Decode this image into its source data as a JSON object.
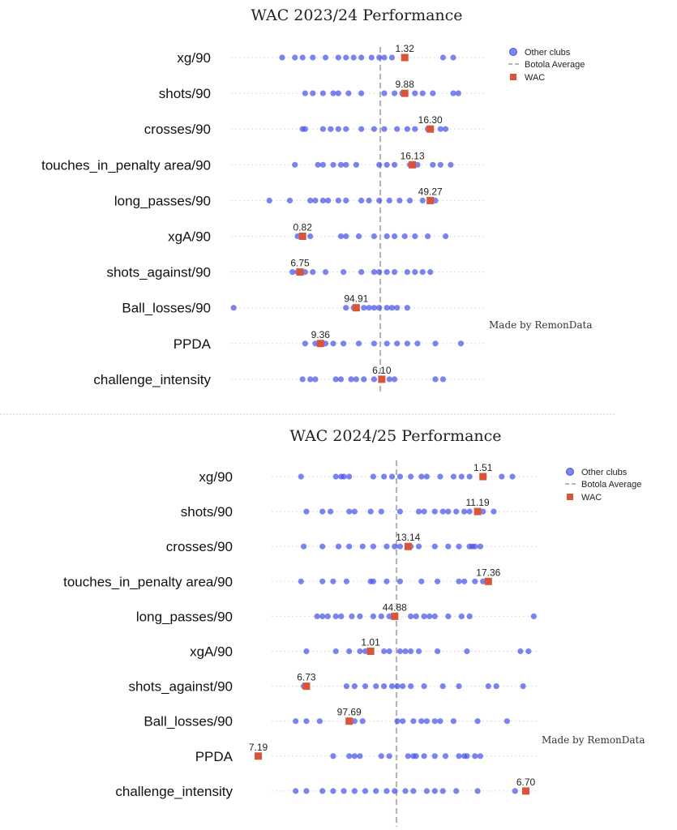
{
  "colors": {
    "other": "#4a55e8",
    "wac": "#d9553a",
    "average": "#b5b5b5",
    "grid": "#dedede",
    "divider": "#c8c8c8"
  },
  "chart_data": [
    {
      "type": "scatter",
      "title": "WAC 2023/24 Performance",
      "credit": "Made by RemonData",
      "legend": {
        "position": "top-right",
        "entries": [
          "Other clubs",
          "Botola Average",
          "WAC"
        ]
      },
      "grid": true,
      "categories": [
        "xg/90",
        "shots/90",
        "crosses/90",
        "touches_in_penalty area/90",
        "long_passes/90",
        "xgA/90",
        "shots_against/90",
        "Ball_losses/90",
        "PPDA",
        "challenge_intensity"
      ],
      "rows": [
        {
          "wac": 1.32,
          "wac_label": "1.32",
          "wac_pct": 0.68,
          "others_pct": [
            0.2,
            0.25,
            0.28,
            0.32,
            0.37,
            0.42,
            0.45,
            0.48,
            0.51,
            0.55,
            0.58,
            0.6,
            0.63,
            0.83,
            0.87
          ]
        },
        {
          "wac": 9.88,
          "wac_label": "9.88",
          "wac_pct": 0.68,
          "others_pct": [
            0.29,
            0.32,
            0.36,
            0.4,
            0.42,
            0.46,
            0.51,
            0.6,
            0.64,
            0.67,
            0.72,
            0.75,
            0.79,
            0.87,
            0.89
          ]
        },
        {
          "wac": 16.3,
          "wac_label": "16.30",
          "wac_pct": 0.78,
          "others_pct": [
            0.28,
            0.29,
            0.36,
            0.39,
            0.42,
            0.45,
            0.51,
            0.56,
            0.6,
            0.65,
            0.69,
            0.72,
            0.77,
            0.82,
            0.84
          ]
        },
        {
          "wac": 16.13,
          "wac_label": "16.13",
          "wac_pct": 0.71,
          "others_pct": [
            0.25,
            0.34,
            0.36,
            0.4,
            0.43,
            0.45,
            0.49,
            0.58,
            0.61,
            0.64,
            0.7,
            0.73,
            0.79,
            0.82,
            0.86
          ]
        },
        {
          "wac": 49.27,
          "wac_label": "49.27",
          "wac_pct": 0.78,
          "others_pct": [
            0.15,
            0.23,
            0.31,
            0.33,
            0.36,
            0.38,
            0.42,
            0.45,
            0.51,
            0.54,
            0.58,
            0.62,
            0.66,
            0.7,
            0.75,
            0.8
          ]
        },
        {
          "wac": 0.82,
          "wac_label": "0.82",
          "wac_pct": 0.28,
          "others_pct": [
            0.26,
            0.28,
            0.31,
            0.43,
            0.45,
            0.5,
            0.56,
            0.61,
            0.64,
            0.68,
            0.72,
            0.77,
            0.84
          ]
        },
        {
          "wac": 6.75,
          "wac_label": "6.75",
          "wac_pct": 0.27,
          "others_pct": [
            0.24,
            0.26,
            0.29,
            0.32,
            0.37,
            0.44,
            0.51,
            0.56,
            0.58,
            0.61,
            0.64,
            0.69,
            0.72,
            0.75,
            0.78
          ]
        },
        {
          "wac": 94.91,
          "wac_label": "94.91",
          "wac_pct": 0.49,
          "others_pct": [
            0.01,
            0.45,
            0.48,
            0.52,
            0.54,
            0.56,
            0.58,
            0.61,
            0.63,
            0.65,
            0.69
          ]
        },
        {
          "wac": 9.36,
          "wac_label": "9.36",
          "wac_pct": 0.35,
          "others_pct": [
            0.29,
            0.33,
            0.35,
            0.37,
            0.4,
            0.44,
            0.5,
            0.56,
            0.61,
            0.65,
            0.69,
            0.73,
            0.8,
            0.9
          ]
        },
        {
          "wac": 6.1,
          "wac_label": "6.10",
          "wac_pct": 0.59,
          "others_pct": [
            0.28,
            0.31,
            0.33,
            0.41,
            0.43,
            0.47,
            0.49,
            0.52,
            0.56,
            0.62,
            0.64,
            0.8,
            0.83
          ]
        }
      ]
    },
    {
      "type": "scatter",
      "title": "WAC 2024/25 Performance",
      "credit": "Made by RemonData",
      "legend": {
        "position": "top-right",
        "entries": [
          "Other clubs",
          "Botola Average",
          "WAC"
        ]
      },
      "grid": true,
      "categories": [
        "xg/90",
        "shots/90",
        "crosses/90",
        "touches_in_penalty area/90",
        "long_passes/90",
        "xgA/90",
        "shots_against/90",
        "Ball_losses/90",
        "PPDA",
        "challenge_intensity"
      ],
      "rows": [
        {
          "wac": 1.51,
          "wac_label": "1.51",
          "wac_pct": 0.79,
          "others_pct": [
            0.11,
            0.24,
            0.26,
            0.27,
            0.29,
            0.38,
            0.42,
            0.45,
            0.48,
            0.52,
            0.56,
            0.58,
            0.63,
            0.68,
            0.71,
            0.74,
            0.86,
            0.9
          ]
        },
        {
          "wac": 11.19,
          "wac_label": "11.19",
          "wac_pct": 0.77,
          "others_pct": [
            0.13,
            0.19,
            0.22,
            0.29,
            0.31,
            0.37,
            0.41,
            0.48,
            0.55,
            0.57,
            0.61,
            0.64,
            0.66,
            0.69,
            0.72,
            0.74,
            0.79,
            0.83
          ]
        },
        {
          "wac": 13.14,
          "wac_label": "13.14",
          "wac_pct": 0.51,
          "others_pct": [
            0.12,
            0.19,
            0.25,
            0.29,
            0.34,
            0.38,
            0.43,
            0.46,
            0.48,
            0.52,
            0.55,
            0.61,
            0.66,
            0.7,
            0.74,
            0.75,
            0.76,
            0.78
          ]
        },
        {
          "wac": 17.36,
          "wac_label": "17.36",
          "wac_pct": 0.81,
          "others_pct": [
            0.11,
            0.19,
            0.23,
            0.28,
            0.37,
            0.38,
            0.43,
            0.48,
            0.56,
            0.62,
            0.7,
            0.72,
            0.76,
            0.79
          ]
        },
        {
          "wac": 44.88,
          "wac_label": "44.88",
          "wac_pct": 0.46,
          "others_pct": [
            0.17,
            0.19,
            0.21,
            0.24,
            0.26,
            0.3,
            0.33,
            0.38,
            0.41,
            0.44,
            0.52,
            0.54,
            0.57,
            0.59,
            0.61,
            0.66,
            0.71,
            0.74,
            0.98
          ]
        },
        {
          "wac": 1.01,
          "wac_label": "1.01",
          "wac_pct": 0.37,
          "others_pct": [
            0.13,
            0.24,
            0.29,
            0.33,
            0.35,
            0.42,
            0.44,
            0.48,
            0.5,
            0.52,
            0.55,
            0.62,
            0.73,
            0.93,
            0.96
          ]
        },
        {
          "wac": 6.73,
          "wac_label": "6.73",
          "wac_pct": 0.13,
          "others_pct": [
            0.12,
            0.28,
            0.31,
            0.35,
            0.39,
            0.42,
            0.45,
            0.47,
            0.49,
            0.52,
            0.57,
            0.64,
            0.7,
            0.81,
            0.84,
            0.94
          ]
        },
        {
          "wac": 97.69,
          "wac_label": "97.69",
          "wac_pct": 0.29,
          "others_pct": [
            0.09,
            0.13,
            0.18,
            0.31,
            0.34,
            0.47,
            0.49,
            0.53,
            0.56,
            0.58,
            0.61,
            0.63,
            0.68,
            0.77,
            0.88
          ]
        },
        {
          "wac": 7.19,
          "wac_label": "7.19",
          "wac_pct": -0.05,
          "others_pct": [
            0.23,
            0.29,
            0.31,
            0.33,
            0.41,
            0.44,
            0.51,
            0.53,
            0.54,
            0.57,
            0.61,
            0.65,
            0.7,
            0.72,
            0.73,
            0.76,
            0.78
          ]
        },
        {
          "wac": 6.7,
          "wac_label": "6.70",
          "wac_pct": 0.95,
          "others_pct": [
            0.09,
            0.13,
            0.19,
            0.23,
            0.27,
            0.31,
            0.35,
            0.39,
            0.43,
            0.46,
            0.5,
            0.53,
            0.58,
            0.61,
            0.64,
            0.69,
            0.77,
            0.91
          ]
        }
      ]
    }
  ]
}
